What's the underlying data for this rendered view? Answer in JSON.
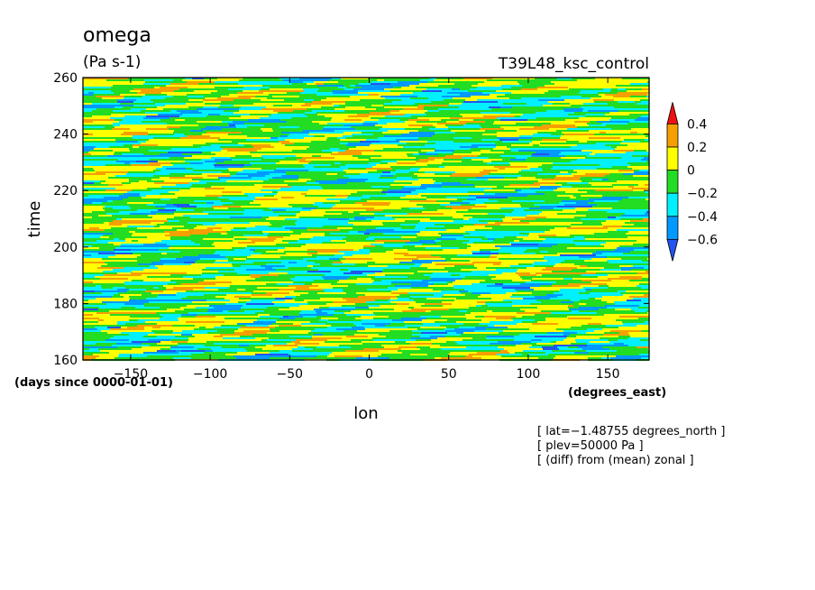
{
  "chart_data": {
    "type": "heatmap",
    "title": "omega",
    "units": "(Pa s-1)",
    "run_label": "T39L48_ksc_control",
    "xlabel": "lon",
    "x_units": "(degrees_east)",
    "ylabel": "time",
    "y_units": "(days since 0000-01-01)",
    "xlim": [
      -180,
      176
    ],
    "ylim": [
      160,
      260
    ],
    "x_ticks": [
      -150,
      -100,
      -50,
      0,
      50,
      100,
      150
    ],
    "x_tick_labels": [
      "−150",
      "−100",
      "−50",
      "0",
      "50",
      "100",
      "150"
    ],
    "y_ticks": [
      160,
      180,
      200,
      220,
      240,
      260
    ],
    "y_tick_labels": [
      "160",
      "180",
      "200",
      "220",
      "240",
      "260"
    ],
    "colorbar": {
      "levels": [
        0.4,
        0.2,
        0,
        -0.2,
        -0.4,
        -0.6
      ],
      "level_labels": [
        "0.4",
        "0.2",
        "0",
        "−0.2",
        "−0.4",
        "−0.6"
      ],
      "colors": [
        "#ee1111",
        "#f5a000",
        "#ffff00",
        "#22dd22",
        "#00f0ff",
        "#0099ff",
        "#2255ee"
      ]
    },
    "notes": [
      "[ lat=−1.48755 degrees_north ]",
      "[ plev=50000 Pa ]",
      "[ (diff) from (mean) zonal ]"
    ]
  }
}
